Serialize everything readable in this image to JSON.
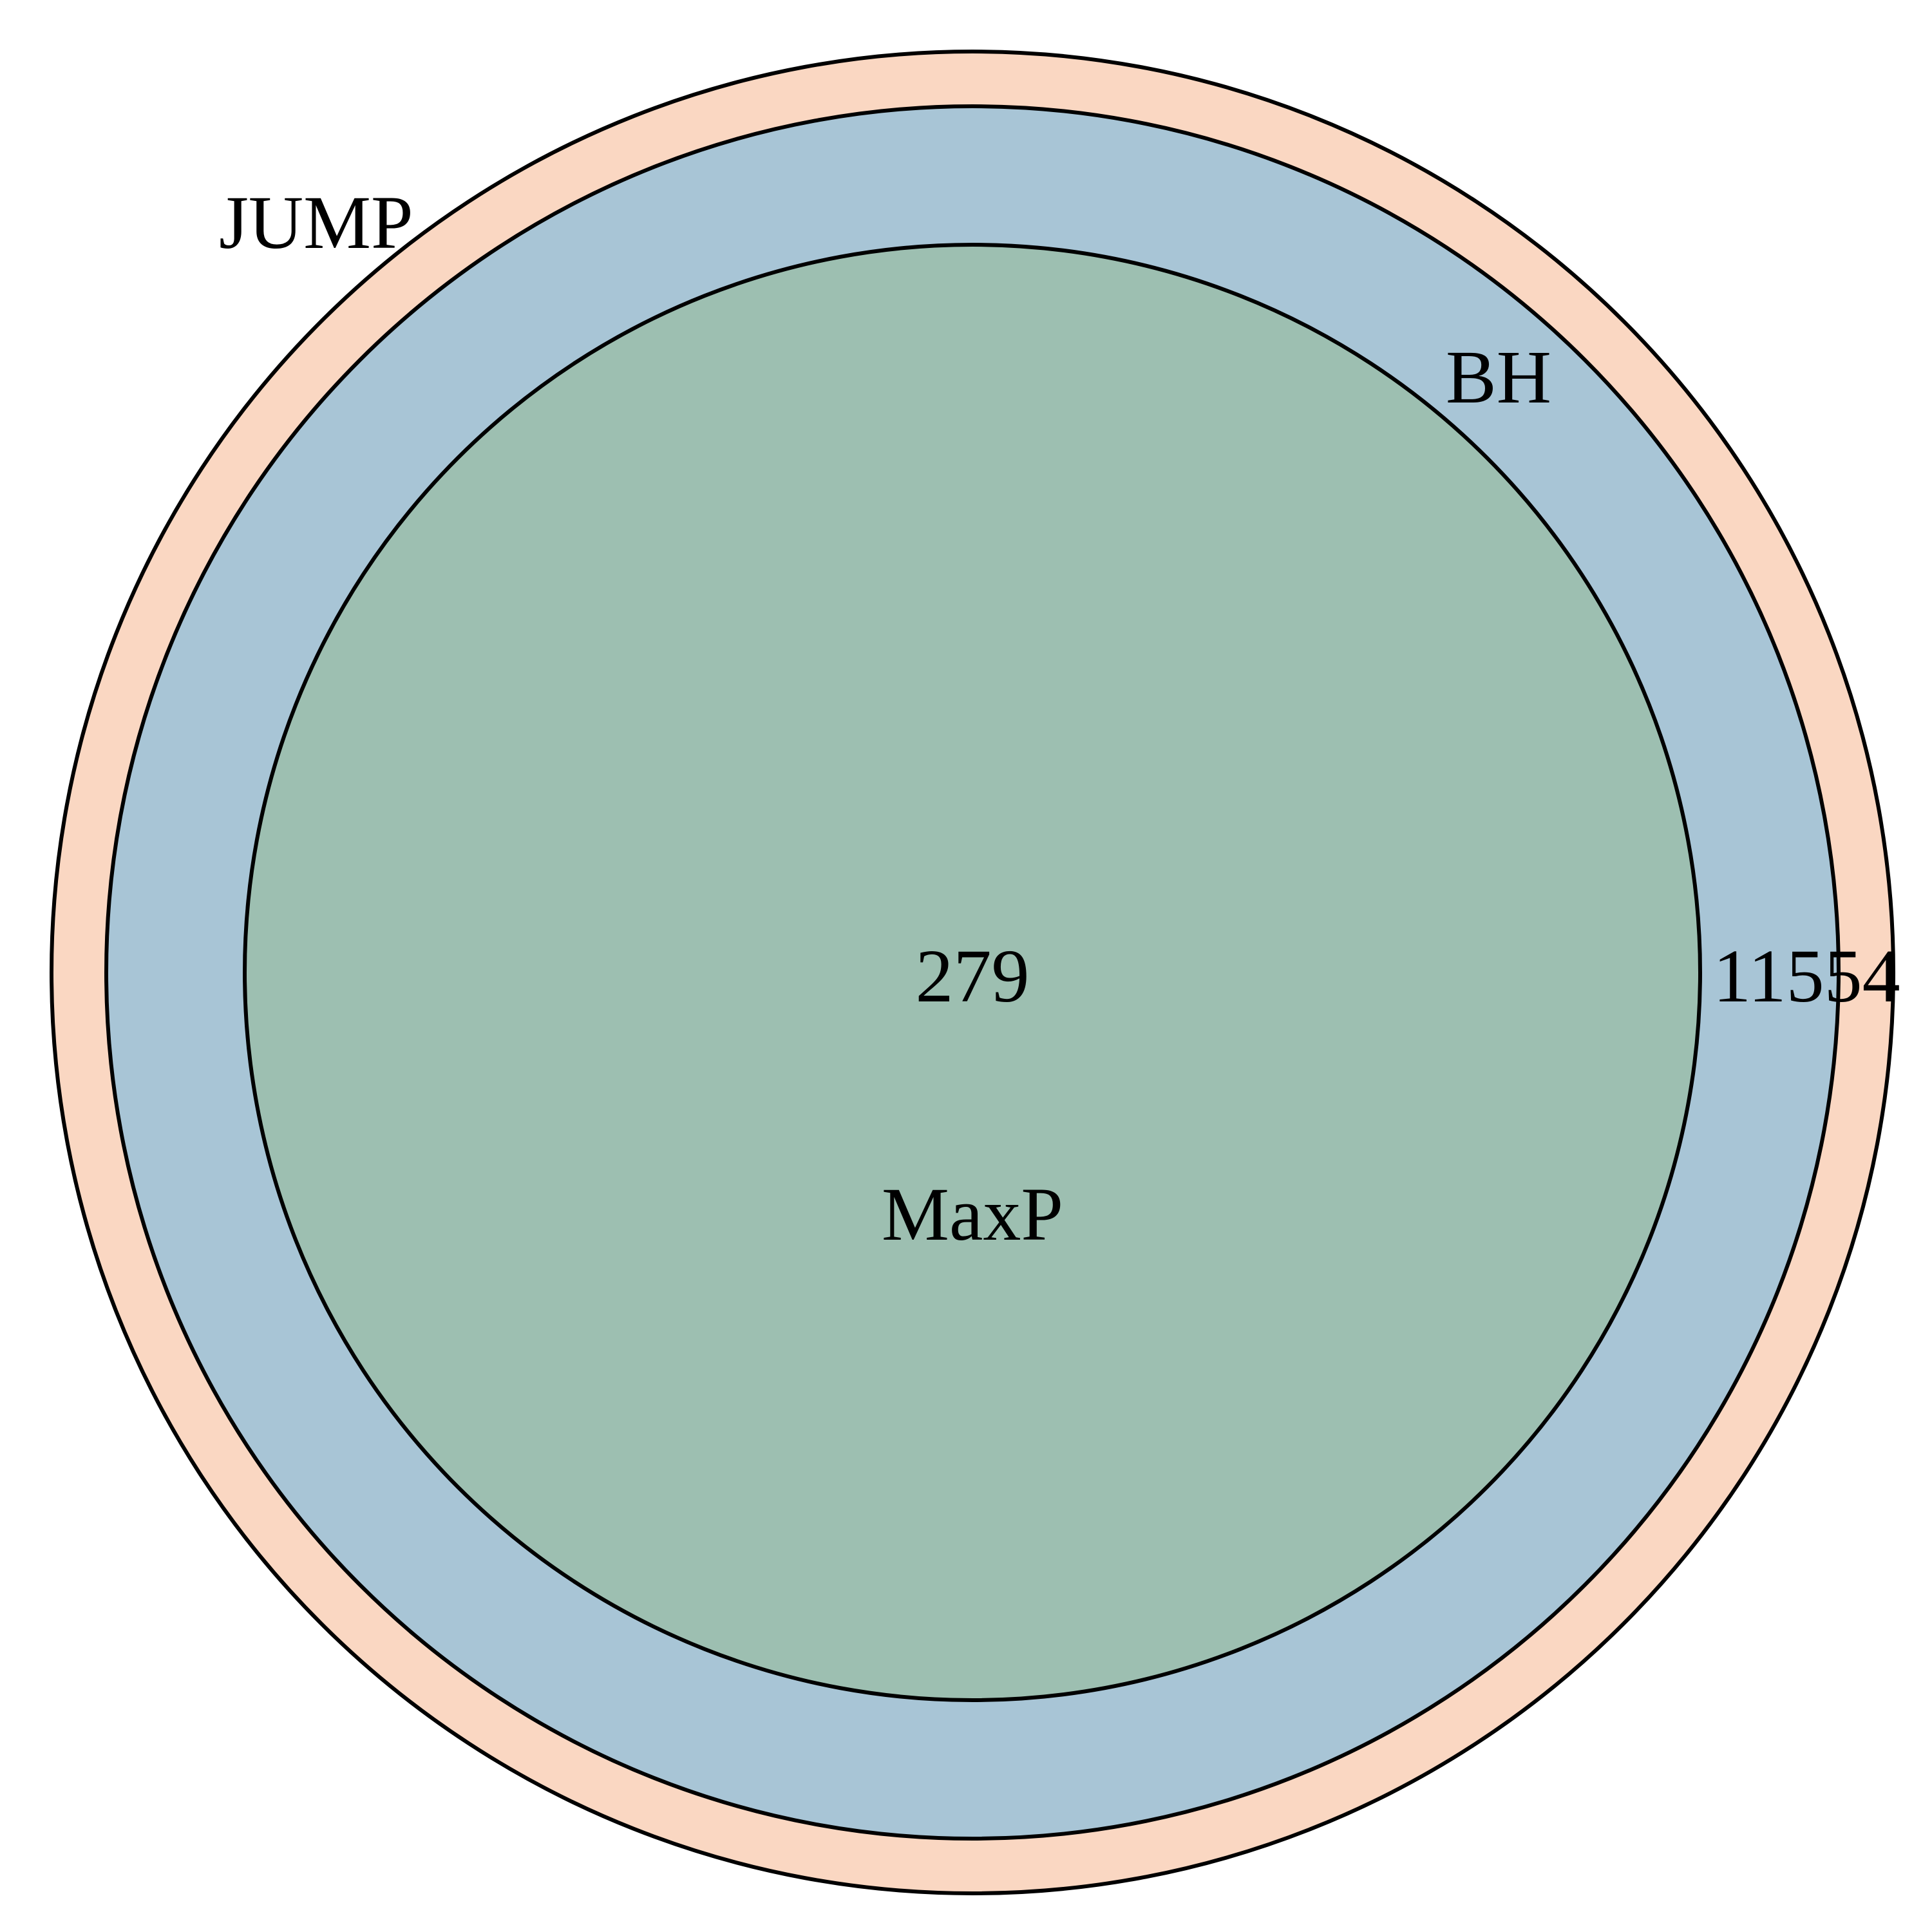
{
  "diagram": {
    "type": "nested-venn",
    "sets": [
      {
        "name": "JUMP",
        "color": "#FAD7C2"
      },
      {
        "name": "BH",
        "color": "#A8C5D6"
      },
      {
        "name": "MaxP",
        "color": "#9DBFB1"
      }
    ],
    "counts": [
      {
        "region": "MaxP",
        "value": "279"
      },
      {
        "region": "BH-only",
        "value": "11554"
      }
    ],
    "outline_color": "#000000"
  }
}
